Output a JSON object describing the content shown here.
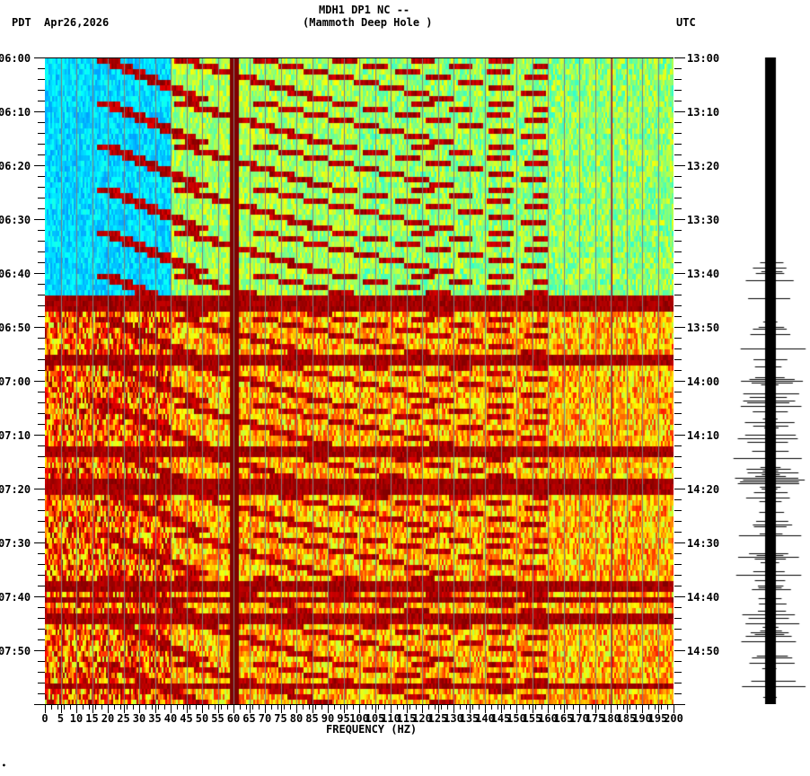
{
  "header": {
    "station_line": "MDH1 DP1 NC --",
    "station_name": "(Mammoth Deep Hole )",
    "left_tz": "PDT",
    "date": "Apr26,2026",
    "right_tz": "UTC"
  },
  "footer_mark": "•",
  "chart_data": [
    {
      "type": "heatmap",
      "title": "MDH1 DP1 NC -- (Mammoth Deep Hole )",
      "subtitle": "Apr26,2026",
      "xlabel": "FREQUENCY (HZ)",
      "ylabel_left": "PDT",
      "ylabel_right": "UTC",
      "xlim": [
        0,
        200
      ],
      "x_ticks": [
        0,
        5,
        10,
        15,
        20,
        25,
        30,
        35,
        40,
        45,
        50,
        55,
        60,
        65,
        70,
        75,
        80,
        85,
        90,
        95,
        100,
        105,
        110,
        115,
        120,
        125,
        130,
        135,
        140,
        145,
        150,
        155,
        160,
        165,
        170,
        175,
        180,
        185,
        190,
        195,
        200
      ],
      "y_ticks_left": [
        "06:00",
        "06:10",
        "06:20",
        "06:30",
        "06:40",
        "06:50",
        "07:00",
        "07:10",
        "07:20",
        "07:30",
        "07:40",
        "07:50"
      ],
      "y_ticks_right": [
        "13:00",
        "13:10",
        "13:20",
        "13:30",
        "13:40",
        "13:50",
        "14:00",
        "14:10",
        "14:20",
        "14:30",
        "14:40",
        "14:50"
      ],
      "time_span_minutes": 120,
      "grid": true,
      "grid_every_hz": 5,
      "colormap": "jet",
      "persistent_lines_hz": [
        60,
        180
      ],
      "features": {
        "quiet_low_freq_until": "06:40",
        "noise_onset": "06:44",
        "strong_broadband_bands_pdt": [
          "06:44",
          "06:55",
          "07:12",
          "07:18",
          "07:37",
          "07:40",
          "07:43",
          "07:55"
        ],
        "curved_harmonic_sweeps": "rising-frequency curved arcs from 0-60 Hz spreading to ~150 Hz, repeating every ~5 min"
      }
    },
    {
      "type": "line",
      "title": "seismogram trace",
      "orientation": "vertical",
      "note": "amplitude increases markedly after 06:40 PDT (13:40 UTC), peak near 14:18 UTC"
    }
  ]
}
